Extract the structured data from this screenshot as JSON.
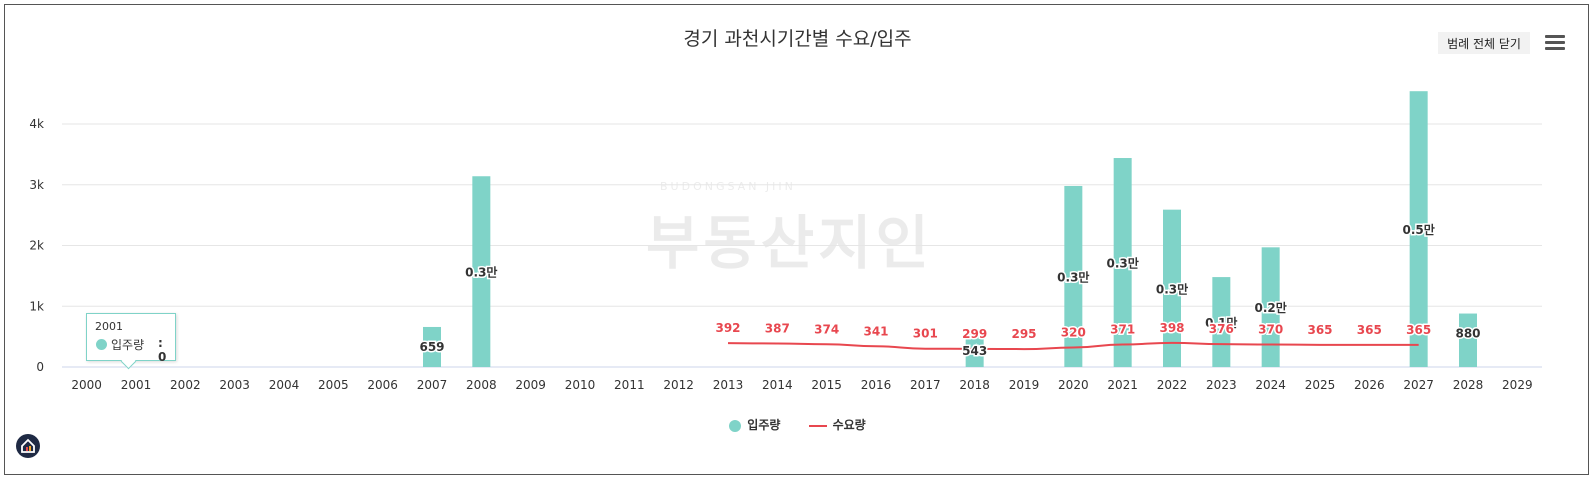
{
  "header": {
    "title": "경기 과천시기간별 수요/입주",
    "legend_toggle_label": "범례 전체 닫기"
  },
  "icons": {
    "menu": "hamburger-menu-icon",
    "brand": "house-logo-icon"
  },
  "watermark": {
    "text": "부동산지인",
    "small_text": "BUDONGSAN JIIN"
  },
  "tooltip": {
    "category": "2001",
    "series_name": "입주량",
    "value_label": ": 0"
  },
  "legend": {
    "items": [
      {
        "name": "입주량",
        "color": "#7fd3c8"
      },
      {
        "name": "수요량",
        "color": "#e8474f"
      }
    ]
  },
  "colors": {
    "bar": "#7fd3c8",
    "line": "#e8474f",
    "grid": "#e6e6e6",
    "axis_text": "#333333"
  },
  "chart_data": {
    "type": "bar",
    "title": "경기 과천시기간별 수요/입주",
    "xlabel": "",
    "ylabel": "",
    "ylim": [
      0,
      4500
    ],
    "yticks": [
      0,
      1000,
      2000,
      3000,
      4000
    ],
    "ytick_labels": [
      "0",
      "1k",
      "2k",
      "3k",
      "4k"
    ],
    "grid": true,
    "legend_position": "bottom",
    "categories": [
      "2000",
      "2001",
      "2002",
      "2003",
      "2004",
      "2005",
      "2006",
      "2007",
      "2008",
      "2009",
      "2010",
      "2011",
      "2012",
      "2013",
      "2014",
      "2015",
      "2016",
      "2017",
      "2018",
      "2019",
      "2020",
      "2021",
      "2022",
      "2023",
      "2024",
      "2025",
      "2026",
      "2027",
      "2028",
      "2029"
    ],
    "series": [
      {
        "name": "입주량",
        "type": "bar",
        "values": [
          0,
          0,
          0,
          0,
          0,
          0,
          0,
          659,
          3140,
          0,
          0,
          0,
          0,
          0,
          0,
          0,
          0,
          0,
          543,
          0,
          2980,
          3440,
          2590,
          1480,
          1970,
          0,
          0,
          4540,
          880,
          0
        ],
        "labels": [
          "",
          "",
          "",
          "",
          "",
          "",
          "",
          "659",
          "0.3만",
          "",
          "",
          "",
          "",
          "",
          "",
          "",
          "",
          "",
          "543",
          "",
          "0.3만",
          "0.3만",
          "0.3만",
          "0.1만",
          "0.2만",
          "",
          "",
          "0.5만",
          "880",
          ""
        ]
      },
      {
        "name": "수요량",
        "type": "line",
        "values": [
          null,
          null,
          null,
          null,
          null,
          null,
          null,
          null,
          null,
          null,
          null,
          null,
          null,
          392,
          387,
          374,
          341,
          301,
          299,
          295,
          320,
          371,
          398,
          376,
          370,
          365,
          365,
          365,
          null,
          null
        ],
        "labels": [
          "",
          "",
          "",
          "",
          "",
          "",
          "",
          "",
          "",
          "",
          "",
          "",
          "",
          "392",
          "387",
          "374",
          "341",
          "301",
          "299",
          "295",
          "320",
          "371",
          "398",
          "376",
          "370",
          "365",
          "365",
          "365",
          "",
          ""
        ]
      }
    ]
  }
}
